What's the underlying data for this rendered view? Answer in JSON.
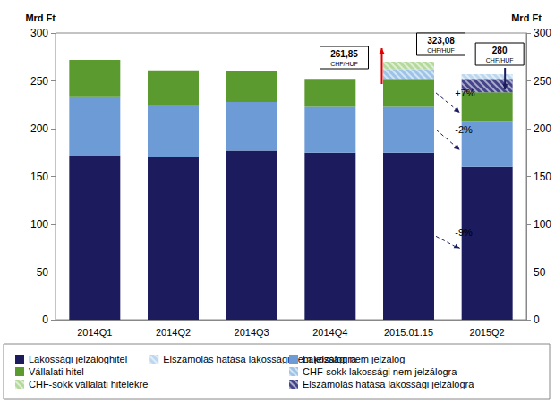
{
  "chart_data": {
    "type": "bar",
    "stacked": true,
    "grid": false,
    "legend": "bottom",
    "y_label": "Mrd Ft",
    "y2_label": "Mrd Ft",
    "categories": [
      "2014Q1",
      "2014Q2",
      "2014Q3",
      "2014Q4",
      "2015.01.15",
      "2015Q2"
    ],
    "series": [
      {
        "name": "Lakossági jelzáloghitel",
        "color": "#1b1b5e",
        "values": [
          171,
          170,
          177,
          175,
          175,
          160
        ]
      },
      {
        "name": "Lakossági nem jelzálog",
        "color": "#6d9bd6",
        "values": [
          62,
          55,
          51,
          48,
          48,
          47
        ]
      },
      {
        "name": "Vállalati hitel",
        "color": "#5b9a2f",
        "values": [
          39,
          36,
          32,
          29,
          29,
          31
        ]
      },
      {
        "name": "CHF-sokk lakossági nem jelzálogra",
        "color": "#9dc3e6",
        "values": [
          null,
          null,
          null,
          null,
          10,
          null
        ]
      },
      {
        "name": "CHF-sokk vállalati hitelekre",
        "color": "#b5d99c",
        "values": [
          null,
          null,
          null,
          null,
          8,
          null
        ]
      },
      {
        "name": "Elszámolás hatása lakossági jelzálogra",
        "color": "#44448a",
        "values": [
          null,
          null,
          null,
          null,
          null,
          14
        ]
      },
      {
        "name": "Elszámolás hatása lakossági nem jelzálogra",
        "color": "#bdd7ee",
        "values": [
          null,
          null,
          null,
          null,
          null,
          5
        ]
      }
    ],
    "ylim": [
      0,
      300
    ],
    "yticks": [
      0,
      50,
      100,
      150,
      200,
      250,
      300
    ],
    "y2lim": [
      0,
      300
    ],
    "y2ticks": [
      0,
      50,
      100,
      150,
      200,
      250,
      300
    ],
    "annotations": [
      {
        "text": "261,85",
        "unit": "CHF/HUF",
        "category": "2015.01.15"
      },
      {
        "text": "323,08",
        "unit": "CHF/HUF",
        "category": "2015.01.15"
      },
      {
        "text": "280",
        "unit": "CHF/HUF",
        "category": "2015Q2"
      },
      {
        "text": "+7%",
        "series": "Vállalati hitel",
        "from": "2015.01.15",
        "to": "2015Q2"
      },
      {
        "text": "-2%",
        "series": "Lakossági nem jelzálog",
        "from": "2015.01.15",
        "to": "2015Q2"
      },
      {
        "text": "-9%",
        "series": "Lakossági jelzáloghitel",
        "from": "2015.01.15",
        "to": "2015Q2"
      }
    ]
  }
}
